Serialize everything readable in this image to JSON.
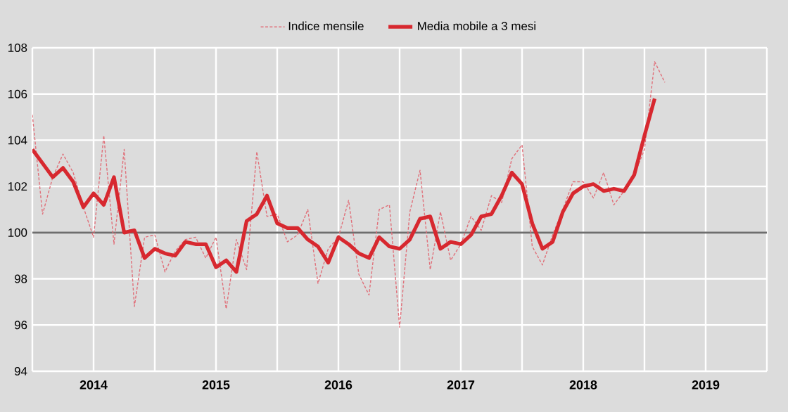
{
  "chart_data": {
    "type": "line",
    "x": [
      "2014-01",
      "2014-02",
      "2014-03",
      "2014-04",
      "2014-05",
      "2014-06",
      "2014-07",
      "2014-08",
      "2014-09",
      "2014-10",
      "2014-11",
      "2014-12",
      "2015-01",
      "2015-02",
      "2015-03",
      "2015-04",
      "2015-05",
      "2015-06",
      "2015-07",
      "2015-08",
      "2015-09",
      "2015-10",
      "2015-11",
      "2015-12",
      "2016-01",
      "2016-02",
      "2016-03",
      "2016-04",
      "2016-05",
      "2016-06",
      "2016-07",
      "2016-08",
      "2016-09",
      "2016-10",
      "2016-11",
      "2016-12",
      "2017-01",
      "2017-02",
      "2017-03",
      "2017-04",
      "2017-05",
      "2017-06",
      "2017-07",
      "2017-08",
      "2017-09",
      "2017-10",
      "2017-11",
      "2017-12",
      "2018-01",
      "2018-02",
      "2018-03",
      "2018-04",
      "2018-05",
      "2018-06",
      "2018-07",
      "2018-08",
      "2018-09",
      "2018-10",
      "2018-11",
      "2018-12",
      "2019-01",
      "2019-02",
      "2019-03"
    ],
    "series": [
      {
        "name": "Indice mensile",
        "color": "#e0707a",
        "line_style": "dashed",
        "values": [
          105.1,
          100.8,
          102.4,
          103.4,
          102.6,
          101.1,
          99.8,
          104.2,
          99.5,
          103.6,
          96.8,
          99.8,
          99.9,
          98.3,
          99.2,
          99.7,
          99.8,
          98.9,
          99.8,
          96.7,
          99.7,
          98.4,
          103.5,
          100.7,
          100.8,
          99.6,
          99.9,
          101.0,
          97.8,
          99.3,
          99.8,
          101.4,
          98.2,
          97.3,
          101.0,
          101.2,
          95.9,
          100.9,
          102.7,
          98.4,
          100.9,
          98.8,
          99.5,
          100.7,
          100.1,
          101.6,
          101.3,
          103.2,
          103.8,
          99.4,
          98.6,
          99.9,
          101.0,
          102.2,
          102.2,
          101.5,
          102.6,
          101.2,
          101.8,
          102.5,
          103.6,
          107.4,
          106.5
        ]
      },
      {
        "name": "Media mobile a 3 mesi",
        "color": "#d7282f",
        "line_style": "solid",
        "values": [
          103.6,
          103.0,
          102.4,
          102.8,
          102.2,
          101.1,
          101.7,
          101.2,
          102.4,
          100.0,
          100.1,
          98.9,
          99.3,
          99.1,
          99.0,
          99.6,
          99.5,
          99.5,
          98.5,
          98.8,
          98.3,
          100.5,
          100.8,
          101.6,
          100.4,
          100.2,
          100.2,
          99.7,
          99.4,
          98.7,
          99.8,
          99.5,
          99.1,
          98.9,
          99.8,
          99.4,
          99.3,
          99.7,
          100.6,
          100.7,
          99.3,
          99.6,
          99.5,
          99.9,
          100.7,
          100.8,
          101.6,
          102.6,
          102.1,
          100.4,
          99.3,
          99.6,
          100.9,
          101.7,
          102.0,
          102.1,
          101.8,
          101.9,
          101.8,
          102.5,
          104.2,
          105.8,
          null
        ]
      }
    ],
    "xlim": [
      "2014-01",
      "2020-01"
    ],
    "xticks": [
      {
        "value": "2014-01",
        "label": null
      },
      {
        "value": "2014-07",
        "label": "2014"
      },
      {
        "value": "2015-01",
        "label": null
      },
      {
        "value": "2015-07",
        "label": "2015"
      },
      {
        "value": "2016-01",
        "label": null
      },
      {
        "value": "2016-07",
        "label": "2016"
      },
      {
        "value": "2017-01",
        "label": null
      },
      {
        "value": "2017-07",
        "label": "2017"
      },
      {
        "value": "2018-01",
        "label": null
      },
      {
        "value": "2018-07",
        "label": "2018"
      },
      {
        "value": "2019-01",
        "label": null
      },
      {
        "value": "2019-07",
        "label": "2019"
      },
      {
        "value": "2020-01",
        "label": null
      }
    ],
    "ylim": [
      94,
      108
    ],
    "yticks": [
      94,
      96,
      98,
      100,
      102,
      104,
      106,
      108
    ],
    "ref_lines": [
      {
        "axis": "y",
        "value": 100,
        "color": "#6e6e6e"
      }
    ],
    "grid": true,
    "legend": "top",
    "marker": "none"
  }
}
